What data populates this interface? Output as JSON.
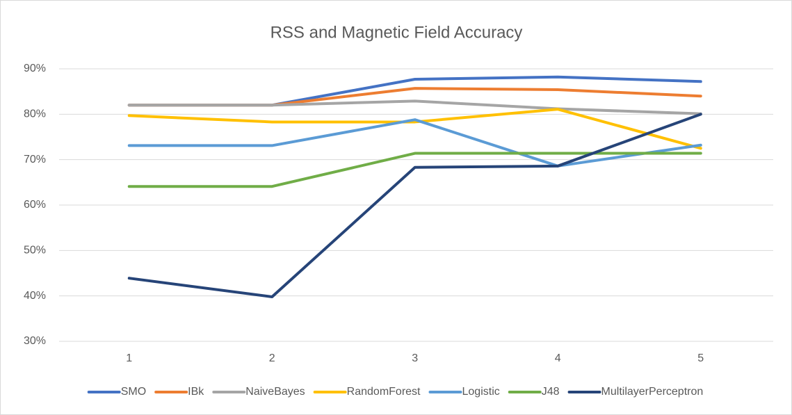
{
  "chart_data": {
    "type": "line",
    "title": "RSS and Magnetic Field Accuracy",
    "categories": [
      "1",
      "2",
      "3",
      "4",
      "5"
    ],
    "series": [
      {
        "name": "SMO",
        "color": "#4472c4",
        "values": [
          82,
          82,
          87.7,
          88.2,
          87.2
        ]
      },
      {
        "name": "IBk",
        "color": "#ed7d31",
        "values": [
          82,
          82,
          85.7,
          85.4,
          84.0
        ]
      },
      {
        "name": "NaiveBayes",
        "color": "#a5a5a5",
        "values": [
          82,
          82,
          82.9,
          81.2,
          80.1
        ]
      },
      {
        "name": "RandomForest",
        "color": "#ffc000",
        "values": [
          79.7,
          78.3,
          78.3,
          81.1,
          72.5
        ]
      },
      {
        "name": "Logistic",
        "color": "#5b9bd5",
        "values": [
          73.1,
          73.1,
          78.8,
          68.6,
          73.2
        ]
      },
      {
        "name": "J48",
        "color": "#70ad47",
        "values": [
          64.1,
          64.1,
          71.4,
          71.4,
          71.4
        ]
      },
      {
        "name": "MultilayerPerceptron",
        "color": "#264478",
        "values": [
          43.9,
          39.8,
          68.3,
          68.6,
          80
        ]
      }
    ],
    "ylim": [
      30,
      90
    ],
    "yticks": [
      {
        "value": 30,
        "label": "30%"
      },
      {
        "value": 40,
        "label": "40%"
      },
      {
        "value": 50,
        "label": "50%"
      },
      {
        "value": 60,
        "label": "60%"
      },
      {
        "value": 70,
        "label": "70%"
      },
      {
        "value": 80,
        "label": "80%"
      },
      {
        "value": 90,
        "label": "90%"
      }
    ],
    "grid": true,
    "legend": "bottom"
  }
}
